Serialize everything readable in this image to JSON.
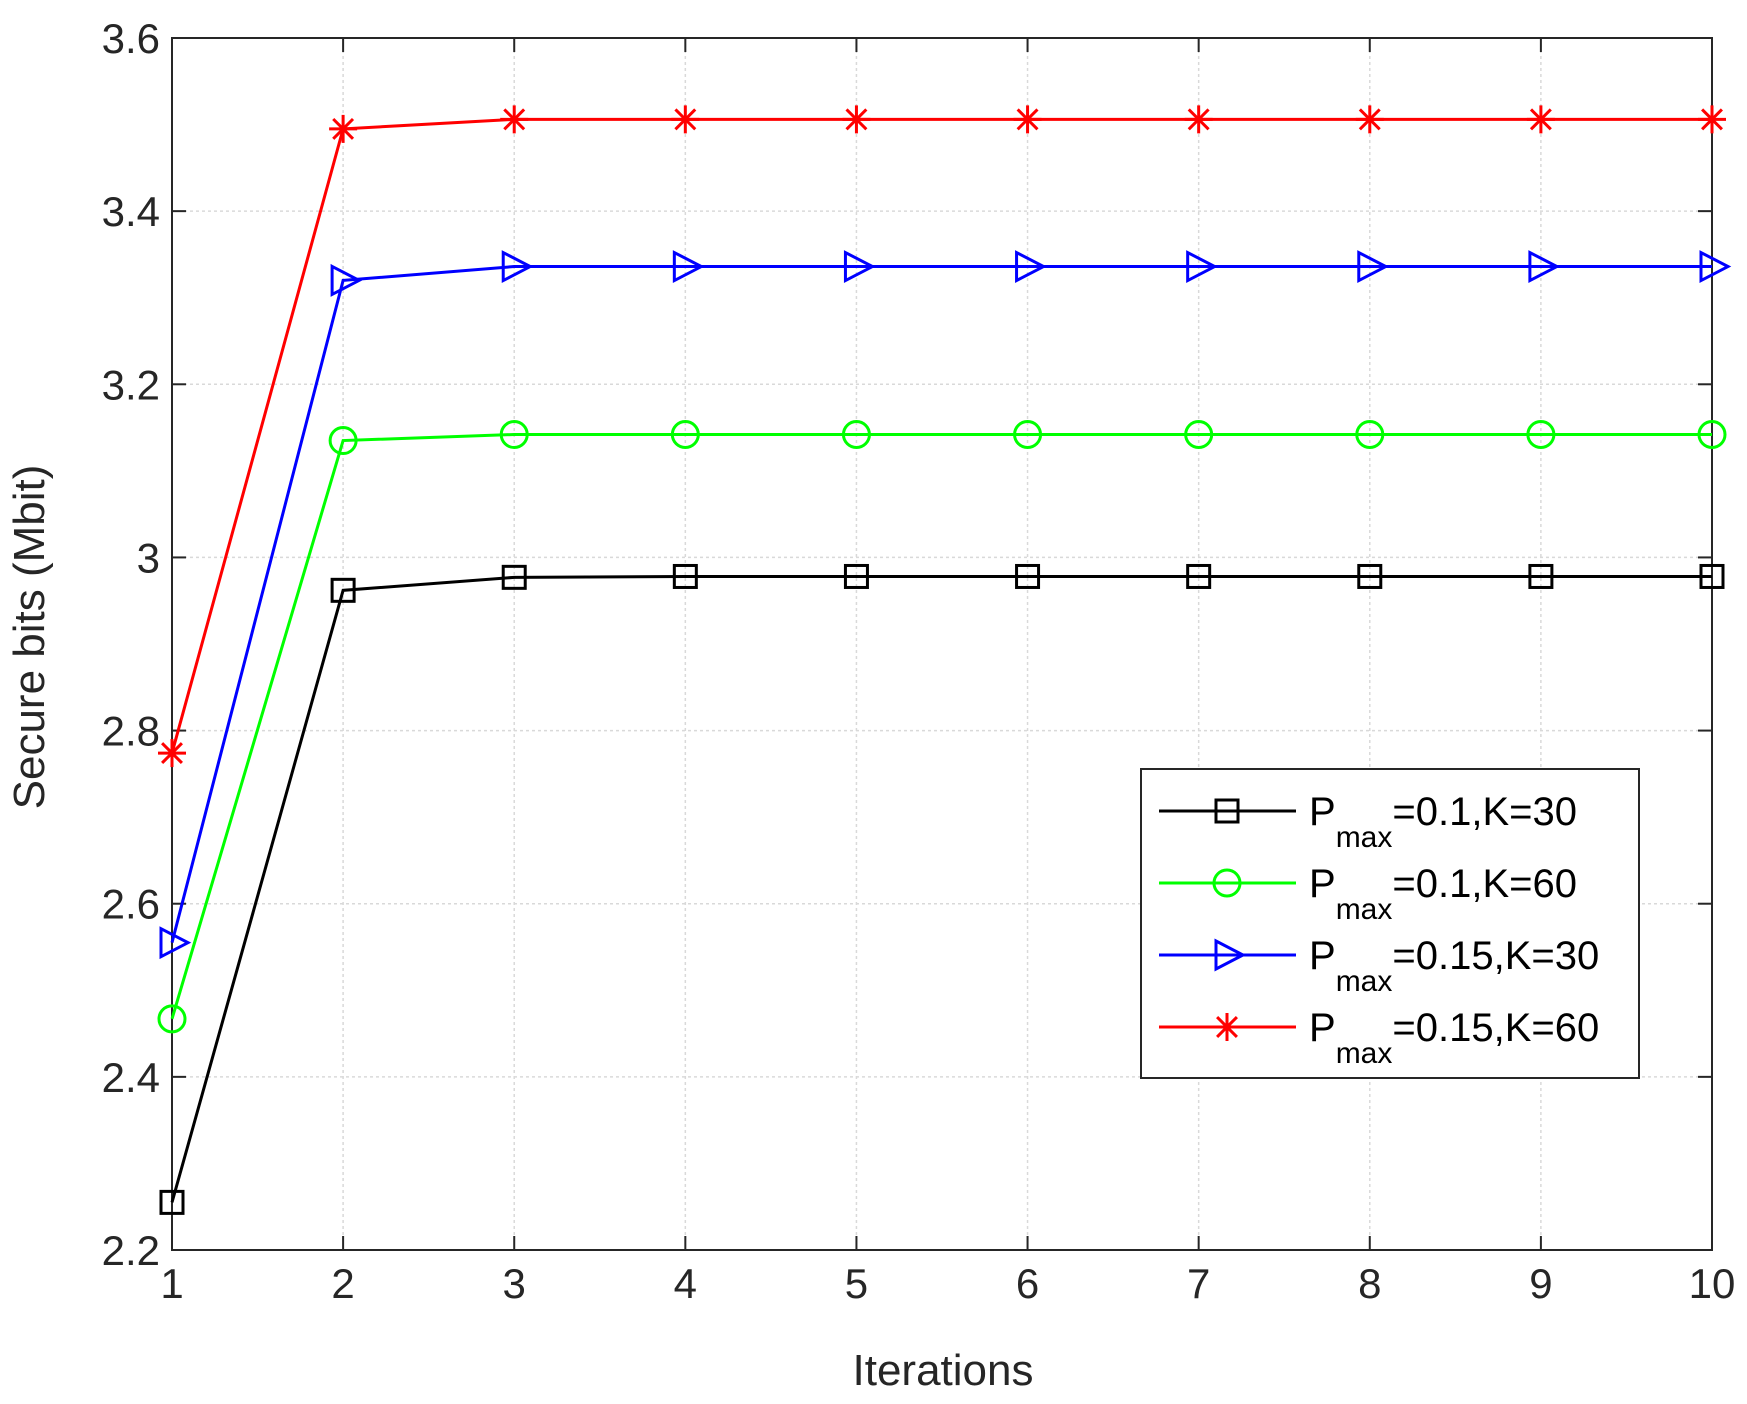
{
  "chart_data": {
    "type": "line",
    "title": "",
    "xlabel": "Iterations",
    "ylabel": "Secure bits (Mbit)",
    "xlim": [
      1,
      10
    ],
    "ylim": [
      2.2,
      3.6
    ],
    "xticks": [
      1,
      2,
      3,
      4,
      5,
      6,
      7,
      8,
      9,
      10
    ],
    "xtick_labels": [
      "1",
      "2",
      "3",
      "4",
      "5",
      "6",
      "7",
      "8",
      "9",
      "10"
    ],
    "yticks": [
      2.2,
      2.4,
      2.6,
      2.8,
      3.0,
      3.2,
      3.4,
      3.6
    ],
    "ytick_labels": [
      "2.2",
      "2.4",
      "2.6",
      "2.8",
      "3",
      "3.2",
      "3.4",
      "3.6"
    ],
    "grid": true,
    "legend_position": "center-right",
    "x": [
      1,
      2,
      3,
      4,
      5,
      6,
      7,
      8,
      9,
      10
    ],
    "series": [
      {
        "name": "P_max=0.1,K=30",
        "label_main": "P",
        "label_sub": "max",
        "label_rest": "=0.1,K=30",
        "color": "#000000",
        "marker": "square",
        "values": [
          2.255,
          2.962,
          2.977,
          2.978,
          2.978,
          2.978,
          2.978,
          2.978,
          2.978,
          2.978
        ]
      },
      {
        "name": "P_max=0.1,K=60",
        "label_main": "P",
        "label_sub": "max",
        "label_rest": "=0.1,K=60",
        "color": "#00ff00",
        "marker": "circle",
        "values": [
          2.467,
          3.135,
          3.142,
          3.142,
          3.142,
          3.142,
          3.142,
          3.142,
          3.142,
          3.142
        ]
      },
      {
        "name": "P_max=0.15,K=30",
        "label_main": "P",
        "label_sub": "max",
        "label_rest": "=0.15,K=30",
        "color": "#0000ff",
        "marker": "triangle-right",
        "values": [
          2.555,
          3.32,
          3.336,
          3.336,
          3.336,
          3.336,
          3.336,
          3.336,
          3.336,
          3.336
        ]
      },
      {
        "name": "P_max=0.15,K=60",
        "label_main": "P",
        "label_sub": "max",
        "label_rest": "=0.15,K=60",
        "color": "#ff0000",
        "marker": "asterisk",
        "values": [
          2.774,
          3.495,
          3.506,
          3.506,
          3.506,
          3.506,
          3.506,
          3.506,
          3.506,
          3.506
        ]
      }
    ]
  }
}
